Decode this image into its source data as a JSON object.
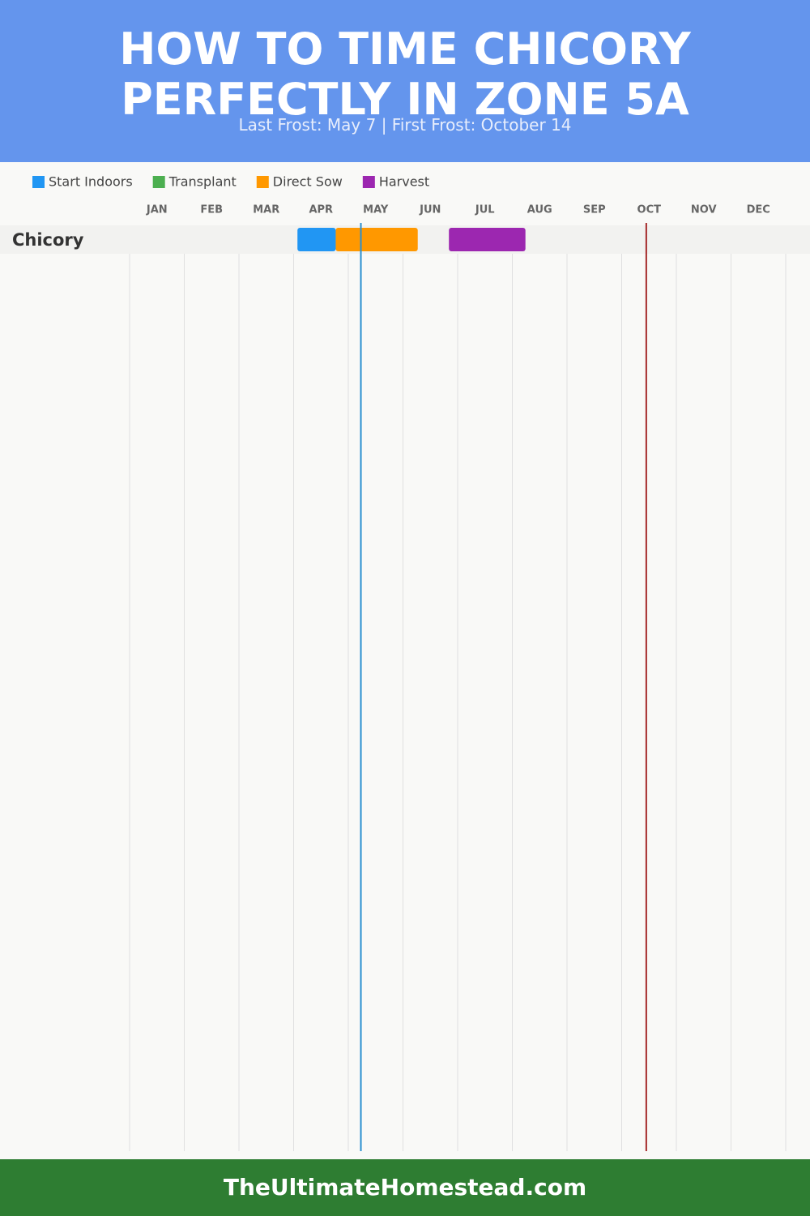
{
  "chart_data": {
    "type": "gantt",
    "title": "HOW TO TIME CHICORY PERFECTLY IN ZONE 5A",
    "subtitle": "Last Frost: May 7 | First Frost: October 14",
    "categories": [
      "JAN",
      "FEB",
      "MAR",
      "APR",
      "MAY",
      "JUN",
      "JUL",
      "AUG",
      "SEP",
      "OCT",
      "NOV",
      "DEC"
    ],
    "xlim": [
      0,
      12
    ],
    "rows": [
      "Chicory"
    ],
    "series": [
      {
        "name": "Start Indoors",
        "color": "#2196f3",
        "start": [
          3.07
        ],
        "end": [
          3.77
        ]
      },
      {
        "name": "Transplant",
        "color": "#4caf50",
        "start": [
          null
        ],
        "end": [
          null
        ]
      },
      {
        "name": "Direct Sow",
        "color": "#ff9800",
        "start": [
          3.77
        ],
        "end": [
          5.27
        ]
      },
      {
        "name": "Harvest",
        "color": "#9c27b0",
        "start": [
          5.84
        ],
        "end": [
          7.24
        ]
      }
    ],
    "frost_lines": [
      {
        "value": 4.23,
        "color": "#2a8fd0"
      },
      {
        "value": 9.45,
        "color": "#a52a2a"
      }
    ],
    "footer": "TheUltimateHomestead.com"
  }
}
